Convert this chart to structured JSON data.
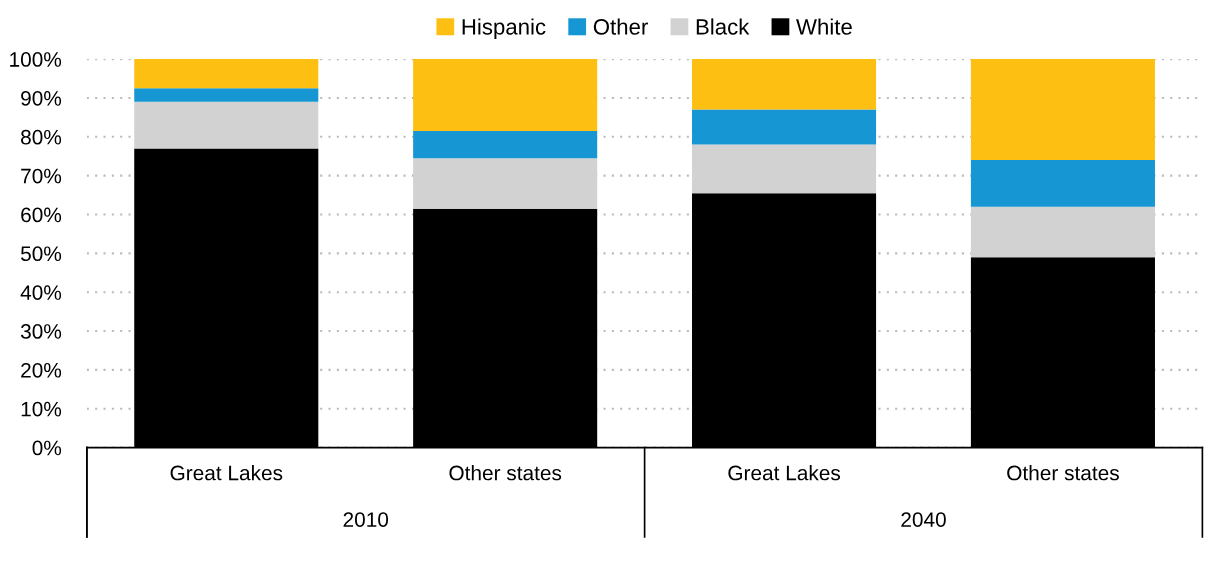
{
  "chart_data": {
    "type": "bar",
    "stacked": true,
    "categories": [
      "Great Lakes",
      "Other states",
      "Great Lakes",
      "Other states"
    ],
    "series": [
      {
        "name": "White",
        "color": "#000000",
        "values": [
          77,
          61.5,
          65.5,
          49
        ]
      },
      {
        "name": "Black",
        "color": "#d2d2d2",
        "values": [
          12,
          13,
          12.5,
          13
        ]
      },
      {
        "name": "Other",
        "color": "#1696d2",
        "values": [
          3.5,
          7,
          9,
          12
        ]
      },
      {
        "name": "Hispanic",
        "color": "#fdbf11",
        "values": [
          7.5,
          18.5,
          13,
          26
        ]
      }
    ],
    "ylim": [
      0,
      100
    ],
    "yticks": [
      {
        "value": 0,
        "label": "0%"
      },
      {
        "value": 10,
        "label": "10%"
      },
      {
        "value": 20,
        "label": "20%"
      },
      {
        "value": 30,
        "label": "30%"
      },
      {
        "value": 40,
        "label": "40%"
      },
      {
        "value": 50,
        "label": "50%"
      },
      {
        "value": 60,
        "label": "60%"
      },
      {
        "value": 70,
        "label": "70%"
      },
      {
        "value": 80,
        "label": "80%"
      },
      {
        "value": 90,
        "label": "90%"
      },
      {
        "value": 100,
        "label": "100%"
      }
    ],
    "annotations": [
      "2010",
      "2040"
    ],
    "grid": "y",
    "legend": "top"
  }
}
